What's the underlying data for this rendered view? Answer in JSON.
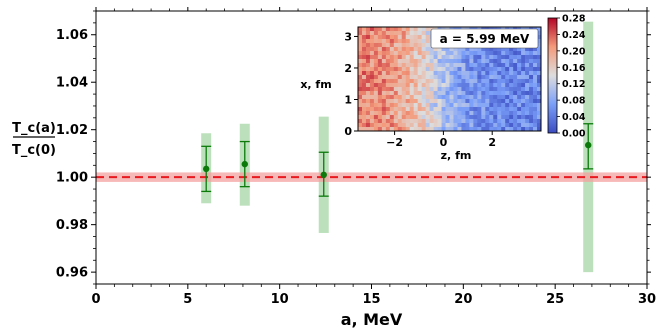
{
  "chart_data": [
    {
      "type": "scatter",
      "xlabel": "a, MeV",
      "ylabel_num": "T_c(a)",
      "ylabel_den": "T_c(0)",
      "xlim": [
        0,
        30
      ],
      "ylim": [
        0.955,
        1.07
      ],
      "x_ticks": [
        0,
        5,
        10,
        15,
        20,
        25,
        30
      ],
      "x_tick_labels": [
        "0",
        "5",
        "10",
        "15",
        "20",
        "25",
        "30"
      ],
      "y_ticks": [
        0.96,
        0.98,
        1.0,
        1.02,
        1.04,
        1.06
      ],
      "y_tick_labels": [
        "0.96",
        "0.98",
        "1.00",
        "1.02",
        "1.04",
        "1.06"
      ],
      "grid": false,
      "series": [
        {
          "points": [
            {
              "x": 6.0,
              "y": 1.0035,
              "err_low": 0.994,
              "err_high": 1.013,
              "band_low": 0.989,
              "band_high": 1.0185
            },
            {
              "x": 8.1,
              "y": 1.0055,
              "err_low": 0.996,
              "err_high": 1.015,
              "band_low": 0.988,
              "band_high": 1.0225
            },
            {
              "x": 12.4,
              "y": 1.001,
              "err_low": 0.992,
              "err_high": 1.0105,
              "band_low": 0.9765,
              "band_high": 1.0255
            },
            {
              "x": 26.8,
              "y": 1.0135,
              "err_low": 1.0035,
              "err_high": 1.0225,
              "band_low": 0.96,
              "band_high": 1.0655
            }
          ],
          "color": "#0b7a0b",
          "band_color": "#9fd39f"
        }
      ],
      "reference_line": {
        "y": 1.0,
        "band": [
          0.998,
          1.002
        ],
        "color": "#e8191f",
        "band_color": "#f4a0a0"
      }
    },
    {
      "type": "heatmap",
      "annotation": "a = 5.99 MeV",
      "xlabel": "z, fm",
      "ylabel": "x, fm",
      "xlim": [
        -3.5,
        4.0
      ],
      "ylim": [
        0,
        3.3
      ],
      "x_ticks": [
        -2,
        0,
        2
      ],
      "x_tick_labels": [
        "−2",
        "0",
        "2"
      ],
      "y_ticks": [
        0,
        1,
        2,
        3
      ],
      "y_tick_labels": [
        "0",
        "1",
        "2",
        "3"
      ],
      "colorbar_range": [
        0.0,
        0.28
      ],
      "colorbar_ticks": [
        0.0,
        0.04,
        0.08,
        0.12,
        0.16,
        0.2,
        0.24,
        0.28
      ],
      "colorbar_tick_labels": [
        "0.00",
        "0.04",
        "0.08",
        "0.12",
        "0.16",
        "0.20",
        "0.24",
        "0.28"
      ],
      "colormap": "coolwarm",
      "value_trend": "about 0.22 at z = -3.5 falling to about 0.05 for z > 1"
    }
  ]
}
